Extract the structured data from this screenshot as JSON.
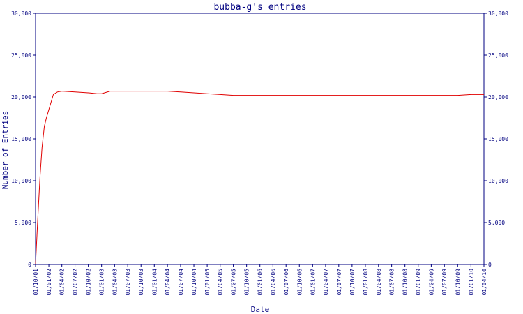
{
  "chart_data": {
    "type": "line",
    "title": "bubba-g's entries",
    "xlabel": "Date",
    "ylabel": "Number of Entries",
    "ylim": [
      0,
      30000
    ],
    "yticks": [
      0,
      5000,
      10000,
      15000,
      20000,
      25000,
      30000
    ],
    "ytick_labels": [
      "0",
      "5,000",
      "10,000",
      "15,000",
      "20,000",
      "25,000",
      "30,000"
    ],
    "right_axis": true,
    "grid": false,
    "legend": "none",
    "line_color": "#e00000",
    "axis_color": "#000080",
    "xtick_labels": [
      "01/10/01",
      "01/01/02",
      "01/04/02",
      "01/07/02",
      "01/10/02",
      "01/01/03",
      "01/04/03",
      "01/07/03",
      "01/10/03",
      "01/01/04",
      "01/04/04",
      "01/07/04",
      "01/10/04",
      "01/01/05",
      "01/04/05",
      "01/07/05",
      "01/10/05",
      "01/01/06",
      "01/04/06",
      "01/07/06",
      "01/10/06",
      "01/01/07",
      "01/04/07",
      "01/07/07",
      "01/10/07",
      "01/01/08",
      "01/04/08",
      "01/07/08",
      "01/10/08",
      "01/01/09",
      "01/04/09",
      "01/07/09",
      "01/10/09",
      "01/01/10",
      "01/04/10"
    ],
    "series": [
      {
        "values": [
          {
            "x": "01/10/01",
            "y": 0
          },
          {
            "x": "15/10/01",
            "y": 5000
          },
          {
            "x": "01/11/01",
            "y": 10500
          },
          {
            "x": "15/11/01",
            "y": 14000
          },
          {
            "x": "01/12/01",
            "y": 16500
          },
          {
            "x": "15/12/01",
            "y": 17500
          },
          {
            "x": "01/01/02",
            "y": 18500
          },
          {
            "x": "01/02/02",
            "y": 20300
          },
          {
            "x": "01/03/02",
            "y": 20600
          },
          {
            "x": "01/04/02",
            "y": 20700
          },
          {
            "x": "01/07/02",
            "y": 20600
          },
          {
            "x": "01/10/02",
            "y": 20500
          },
          {
            "x": "01/12/02",
            "y": 20400
          },
          {
            "x": "01/01/03",
            "y": 20400
          },
          {
            "x": "01/03/03",
            "y": 20700
          },
          {
            "x": "01/04/03",
            "y": 20700
          },
          {
            "x": "01/01/04",
            "y": 20700
          },
          {
            "x": "01/04/04",
            "y": 20700
          },
          {
            "x": "01/07/04",
            "y": 20600
          },
          {
            "x": "01/10/04",
            "y": 20500
          },
          {
            "x": "01/01/05",
            "y": 20400
          },
          {
            "x": "01/04/05",
            "y": 20300
          },
          {
            "x": "01/07/05",
            "y": 20200
          },
          {
            "x": "01/01/07",
            "y": 20200
          },
          {
            "x": "01/01/09",
            "y": 20200
          },
          {
            "x": "01/10/09",
            "y": 20200
          },
          {
            "x": "01/01/10",
            "y": 20300
          },
          {
            "x": "01/04/10",
            "y": 20300
          }
        ]
      }
    ]
  }
}
